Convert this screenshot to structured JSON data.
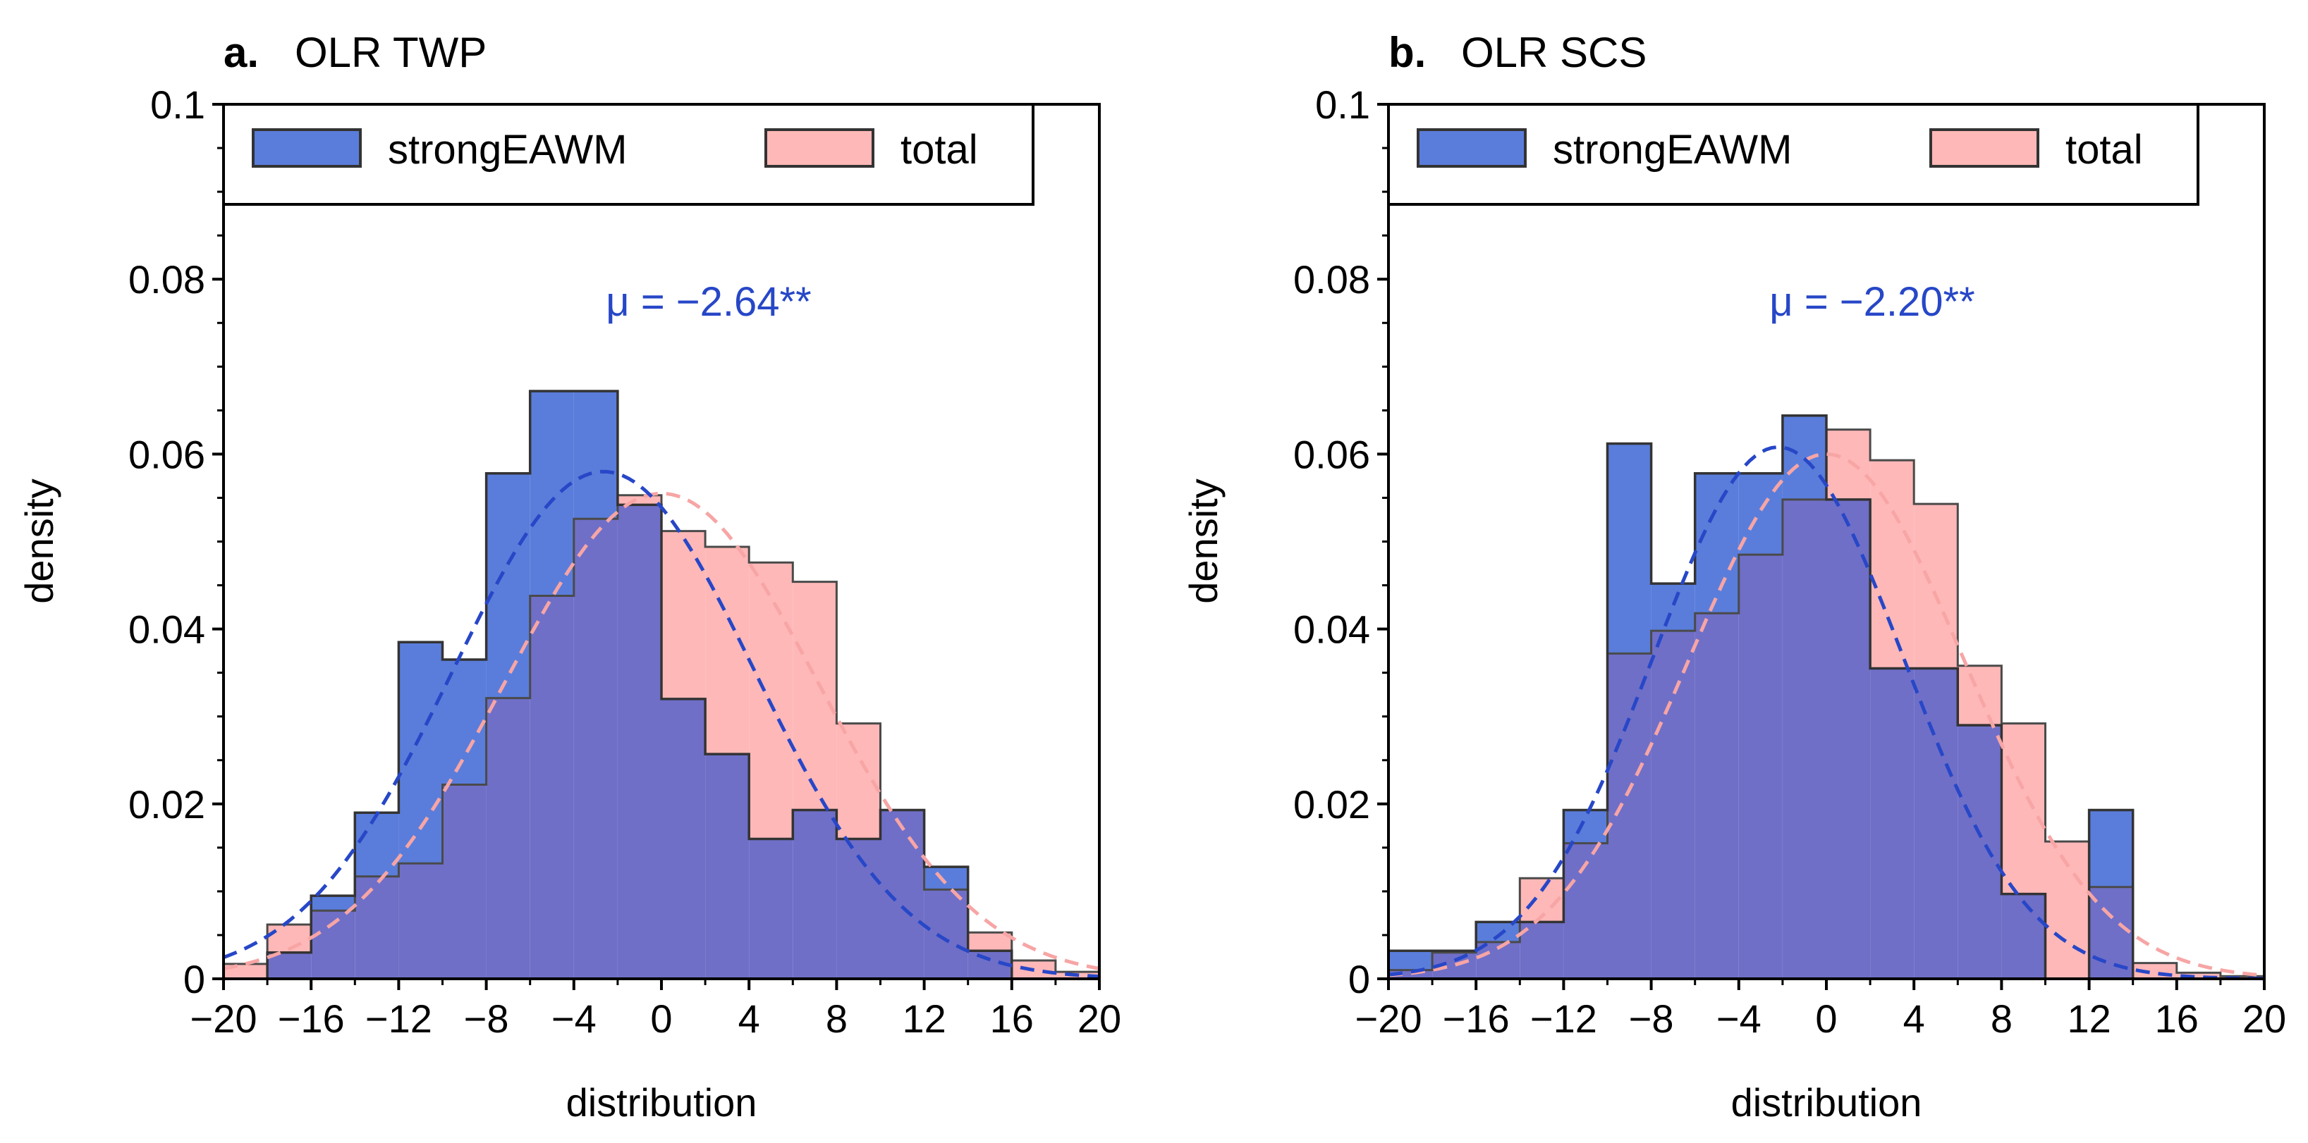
{
  "figure": {
    "colors": {
      "strong_fill": "#5a7ddb",
      "total_fill": "#ffb8b8",
      "overlap_fill": "#6f6fc8",
      "strong_curve": "#2747c7",
      "total_curve": "#f7a5a5",
      "annotation": "#2747c7",
      "edge": "#333333",
      "axis": "#000000"
    }
  },
  "chart_data": [
    {
      "type": "histogram",
      "panel_letter": "a.",
      "title": "OLR TWP",
      "xlabel": "distribution",
      "ylabel": "density",
      "xlim": [
        -20,
        20
      ],
      "ylim": [
        0,
        0.1
      ],
      "xticks": [
        -20,
        -16,
        -12,
        -8,
        -4,
        0,
        4,
        8,
        12,
        16,
        20
      ],
      "xtick_labels": [
        "−20",
        "−16",
        "−12",
        "−8",
        "−4",
        "0",
        "4",
        "8",
        "12",
        "16",
        "20"
      ],
      "yticks": [
        0,
        0.02,
        0.04,
        0.06,
        0.08,
        0.1
      ],
      "ytick_labels": [
        "0",
        "0.02",
        "0.04",
        "0.06",
        "0.08",
        "0.1"
      ],
      "legend": {
        "location": "upper-left",
        "entries": [
          "strongEAWM",
          "total"
        ]
      },
      "annotation": "μ = −2.64**",
      "bin_edges": [
        -20,
        -18,
        -16,
        -14,
        -12,
        -10,
        -8,
        -6,
        -4,
        -2,
        0,
        2,
        4,
        6,
        8,
        10,
        12,
        14,
        16,
        18,
        20
      ],
      "series": [
        {
          "name": "strongEAWM",
          "densities": [
            0.0,
            0.003,
            0.0095,
            0.019,
            0.0385,
            0.0365,
            0.0578,
            0.0672,
            0.0672,
            0.0542,
            0.032,
            0.0257,
            0.016,
            0.0193,
            0.016,
            0.0193,
            0.0128,
            0.0032,
            0.0,
            0.0
          ]
        },
        {
          "name": "total",
          "densities": [
            0.0017,
            0.0062,
            0.0078,
            0.0117,
            0.0132,
            0.0222,
            0.0321,
            0.0438,
            0.0526,
            0.0553,
            0.0512,
            0.0494,
            0.0476,
            0.0454,
            0.0292,
            0.0193,
            0.0102,
            0.0053,
            0.0021,
            0.0008
          ]
        }
      ],
      "fit_curves": [
        {
          "name": "strongEAWM",
          "mean": -2.64,
          "sd": 6.9,
          "peak": 0.058
        },
        {
          "name": "total",
          "mean": 0.0,
          "sd": 7.2,
          "peak": 0.0555
        }
      ]
    },
    {
      "type": "histogram",
      "panel_letter": "b.",
      "title": "OLR SCS",
      "xlabel": "distribution",
      "ylabel": "density",
      "xlim": [
        -20,
        20
      ],
      "ylim": [
        0,
        0.1
      ],
      "xticks": [
        -20,
        -16,
        -12,
        -8,
        -4,
        0,
        4,
        8,
        12,
        16,
        20
      ],
      "xtick_labels": [
        "−20",
        "−16",
        "−12",
        "−8",
        "−4",
        "0",
        "4",
        "8",
        "12",
        "16",
        "20"
      ],
      "yticks": [
        0,
        0.02,
        0.04,
        0.06,
        0.08,
        0.1
      ],
      "ytick_labels": [
        "0",
        "0.02",
        "0.04",
        "0.06",
        "0.08",
        "0.1"
      ],
      "legend": {
        "location": "upper-left",
        "entries": [
          "strongEAWM",
          "total"
        ]
      },
      "annotation": "μ = −2.20**",
      "bin_edges": [
        -20,
        -18,
        -16,
        -14,
        -12,
        -10,
        -8,
        -6,
        -4,
        -2,
        0,
        2,
        4,
        6,
        8,
        10,
        12,
        14,
        16,
        18,
        20
      ],
      "series": [
        {
          "name": "strongEAWM",
          "densities": [
            0.0032,
            0.0032,
            0.0065,
            0.0065,
            0.0193,
            0.0612,
            0.0452,
            0.0578,
            0.0578,
            0.0644,
            0.0548,
            0.0355,
            0.0355,
            0.029,
            0.0097,
            0.0,
            0.0193,
            0.0,
            0.0,
            0.0
          ]
        },
        {
          "name": "total",
          "densities": [
            0.001,
            0.003,
            0.0042,
            0.0115,
            0.0155,
            0.0372,
            0.0398,
            0.0418,
            0.0485,
            0.0548,
            0.0628,
            0.0593,
            0.0543,
            0.0358,
            0.0292,
            0.0157,
            0.0105,
            0.0018,
            0.0007,
            0.0003
          ]
        }
      ],
      "fit_curves": [
        {
          "name": "strongEAWM",
          "mean": -2.2,
          "sd": 5.7,
          "peak": 0.0608
        },
        {
          "name": "total",
          "mean": 0.0,
          "sd": 6.3,
          "peak": 0.06
        }
      ]
    }
  ]
}
